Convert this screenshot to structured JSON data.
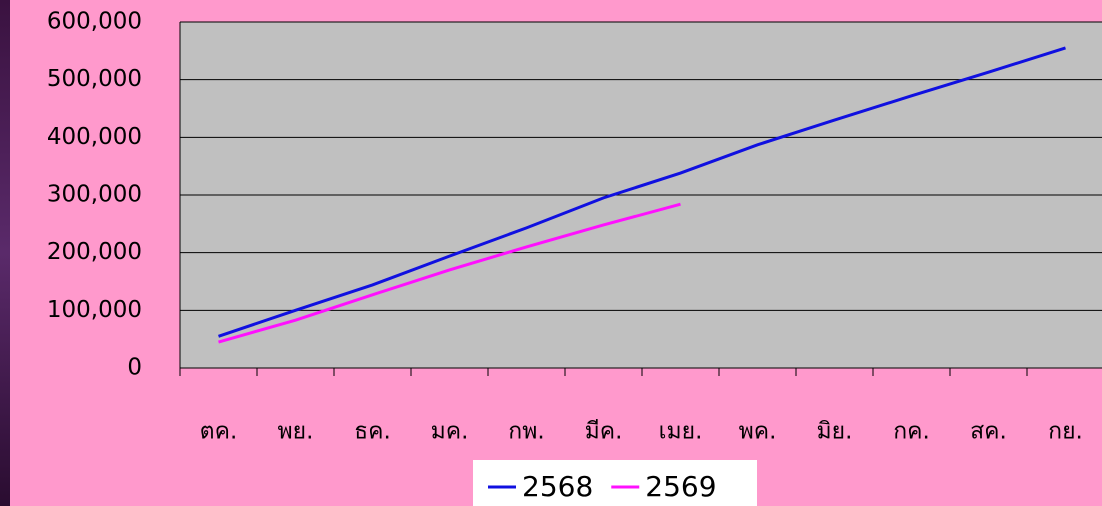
{
  "chart_data": {
    "type": "line",
    "categories": [
      "ตค.",
      "พย.",
      "ธค.",
      "มค.",
      "กพ.",
      "มีค.",
      "เมย.",
      "พค.",
      "มิย.",
      "กค.",
      "สค.",
      "กย."
    ],
    "series": [
      {
        "name": "2568",
        "color": "#1010e0",
        "values": [
          55000,
          100000,
          144000,
          194000,
          243000,
          295000,
          338000,
          387000,
          430000,
          472000,
          513000,
          555000
        ]
      },
      {
        "name": "2569",
        "color": "#ff10ff",
        "values": [
          45000,
          83000,
          127000,
          170000,
          210000,
          248000,
          284000,
          null,
          null,
          null,
          null,
          null
        ]
      }
    ],
    "ylim": [
      0,
      600000
    ],
    "yticks": [
      0,
      {
        "value": 100000,
        "label": "100,000"
      },
      {
        "value": 200000,
        "label": "200,000"
      },
      {
        "value": 300000,
        "label": "300,000"
      },
      {
        "value": 400000,
        "label": "400,000"
      },
      {
        "value": 500000,
        "label": "500,000"
      },
      {
        "value": 600000,
        "label": "600,000"
      }
    ],
    "grid": true,
    "legend": "bottom"
  }
}
